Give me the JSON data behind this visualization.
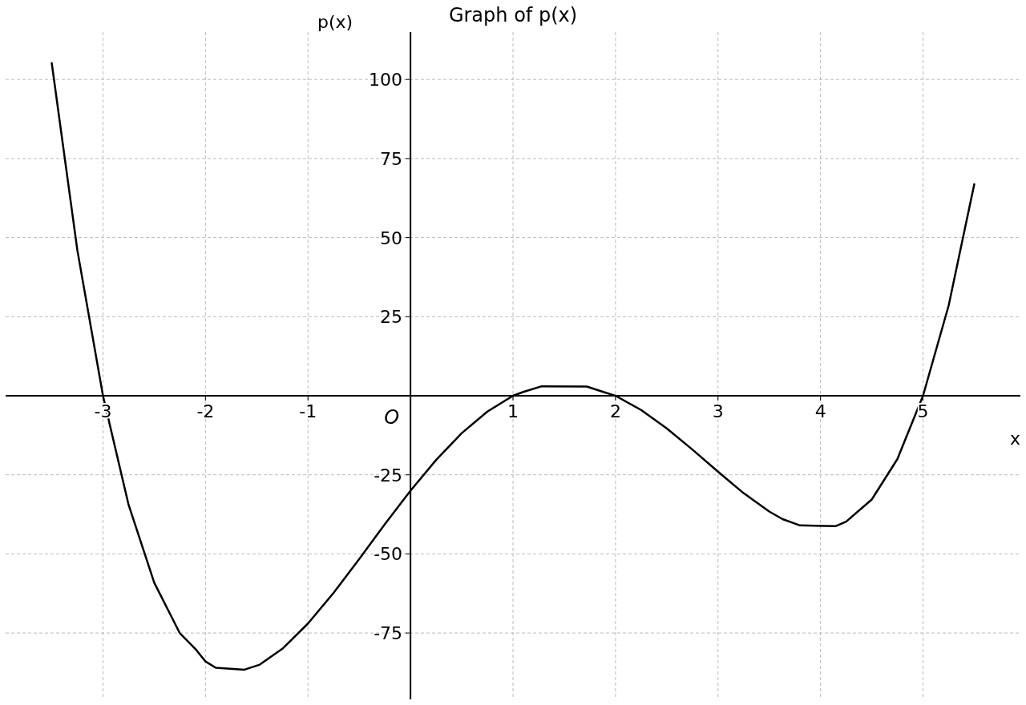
{
  "chart_data": {
    "type": "line",
    "title": "Graph of p(x)",
    "xlabel": "x",
    "ylabel": "p(x)",
    "xlim": [
      -3.95,
      5.95
    ],
    "ylim": [
      -96,
      115
    ],
    "xticks": [
      -3,
      -2,
      -1,
      1,
      2,
      3,
      4,
      5
    ],
    "yticks": [
      -75,
      -50,
      -25,
      25,
      50,
      75,
      100
    ],
    "grid": true,
    "line_style": "solid",
    "marker": "none",
    "annotations": [
      "O"
    ],
    "series": [
      {
        "color": "#000000",
        "x": [
          -3.5,
          -3.25,
          -3,
          -2.75,
          -2.5,
          -2.25,
          -2.1,
          -2,
          -1.9,
          -1.62,
          -1.47,
          -1.25,
          -1,
          -0.75,
          -0.5,
          -0.25,
          0,
          0.25,
          0.5,
          0.75,
          1,
          1.1,
          1.28,
          1.72,
          1.9,
          2,
          2.25,
          2.5,
          2.75,
          3,
          3.25,
          3.5,
          3.63,
          3.8,
          4.15,
          4.25,
          4.5,
          4.75,
          5,
          5.25,
          5.5
        ],
        "values": [
          105.2,
          46,
          0,
          -34.5,
          -59.1,
          -75.1,
          -80,
          -84,
          -86,
          -86.6,
          -85,
          -80,
          -72,
          -62.3,
          -51.6,
          -40.6,
          -30,
          -20.3,
          -11.8,
          -5,
          0,
          1.2,
          3,
          2.9,
          1,
          0,
          -4.5,
          -10.3,
          -17,
          -24,
          -30.8,
          -36.6,
          -39,
          -41,
          -41.2,
          -39.8,
          -32.8,
          -20,
          0,
          28.5,
          66.9
        ]
      }
    ]
  }
}
